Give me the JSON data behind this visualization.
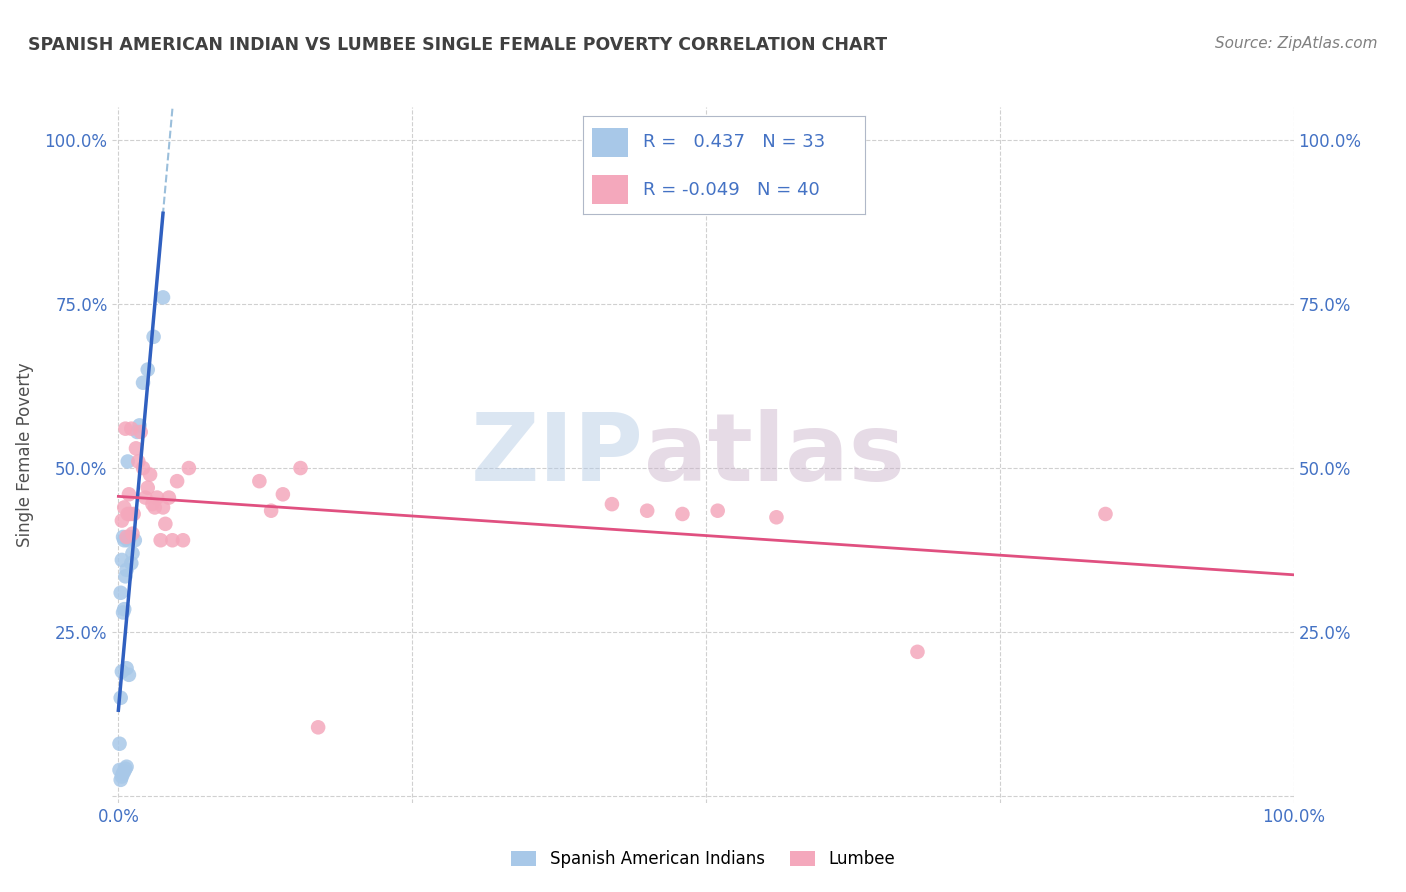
{
  "title": "SPANISH AMERICAN INDIAN VS LUMBEE SINGLE FEMALE POVERTY CORRELATION CHART",
  "source": "Source: ZipAtlas.com",
  "ylabel": "Single Female Poverty",
  "blue_color": "#a8c8e8",
  "pink_color": "#f4a8bc",
  "blue_line_color": "#3060c0",
  "pink_line_color": "#e05080",
  "blue_dash_color": "#90b8d8",
  "watermark_color": "#c8daf0",
  "watermark_color2": "#d8c8d8",
  "R_blue": 0.437,
  "N_blue": 33,
  "R_pink": -0.049,
  "N_pink": 40,
  "blue_points_x": [
    0.001,
    0.001,
    0.002,
    0.002,
    0.002,
    0.003,
    0.003,
    0.003,
    0.004,
    0.004,
    0.004,
    0.005,
    0.005,
    0.005,
    0.006,
    0.006,
    0.007,
    0.007,
    0.007,
    0.008,
    0.008,
    0.009,
    0.009,
    0.01,
    0.011,
    0.012,
    0.014,
    0.016,
    0.018,
    0.021,
    0.025,
    0.03,
    0.038
  ],
  "blue_points_y": [
    0.04,
    0.08,
    0.025,
    0.15,
    0.31,
    0.03,
    0.19,
    0.36,
    0.035,
    0.28,
    0.395,
    0.038,
    0.285,
    0.39,
    0.042,
    0.335,
    0.045,
    0.195,
    0.345,
    0.39,
    0.51,
    0.185,
    0.395,
    0.395,
    0.355,
    0.37,
    0.39,
    0.555,
    0.565,
    0.63,
    0.65,
    0.7,
    0.76
  ],
  "pink_points_x": [
    0.003,
    0.005,
    0.006,
    0.007,
    0.008,
    0.009,
    0.01,
    0.011,
    0.012,
    0.013,
    0.015,
    0.017,
    0.019,
    0.021,
    0.023,
    0.025,
    0.027,
    0.029,
    0.031,
    0.033,
    0.036,
    0.038,
    0.04,
    0.043,
    0.046,
    0.05,
    0.055,
    0.06,
    0.12,
    0.13,
    0.14,
    0.155,
    0.17,
    0.42,
    0.45,
    0.48,
    0.51,
    0.56,
    0.68,
    0.84
  ],
  "pink_points_y": [
    0.42,
    0.44,
    0.56,
    0.395,
    0.43,
    0.46,
    0.43,
    0.56,
    0.4,
    0.43,
    0.53,
    0.51,
    0.555,
    0.5,
    0.455,
    0.47,
    0.49,
    0.445,
    0.44,
    0.455,
    0.39,
    0.44,
    0.415,
    0.455,
    0.39,
    0.48,
    0.39,
    0.5,
    0.48,
    0.435,
    0.46,
    0.5,
    0.105,
    0.445,
    0.435,
    0.43,
    0.435,
    0.425,
    0.22,
    0.43
  ],
  "background_color": "#ffffff",
  "tick_color": "#4472C4",
  "title_color": "#404040",
  "source_color": "#808080",
  "ylabel_color": "#505050",
  "grid_color": "#d0d0d0"
}
